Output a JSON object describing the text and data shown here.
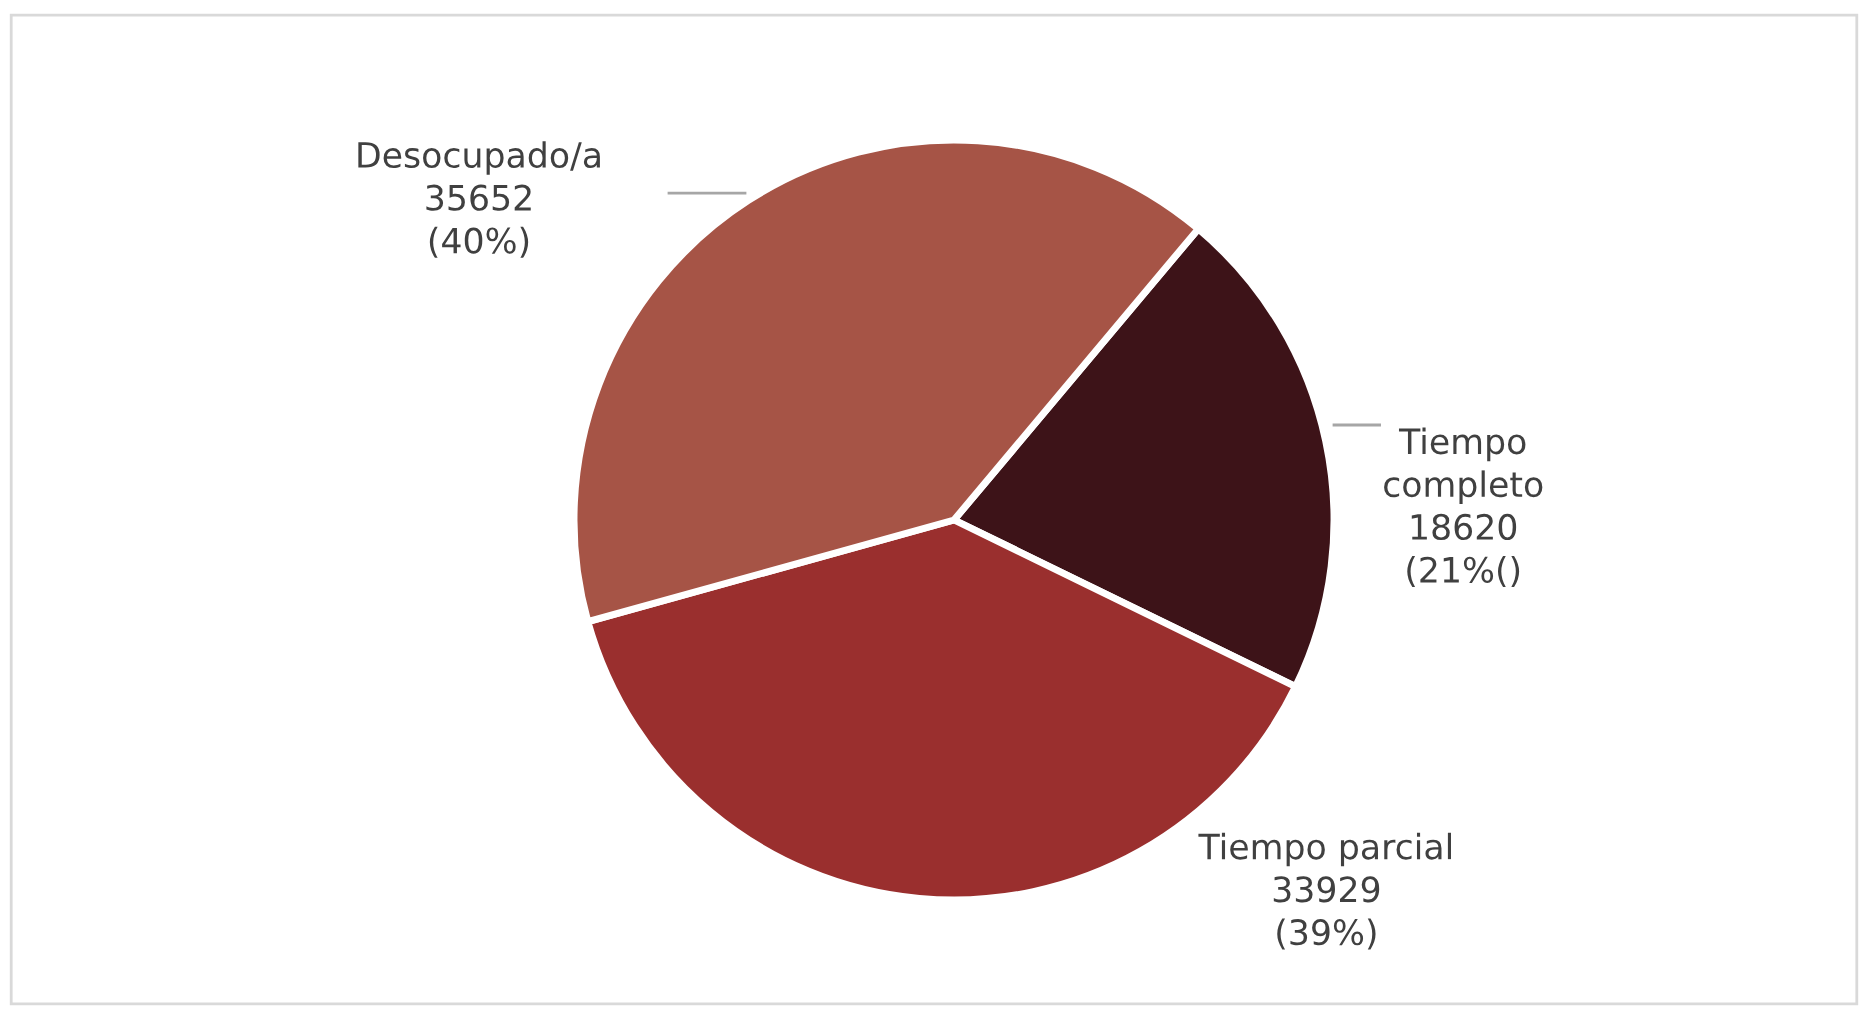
{
  "chart_data": {
    "type": "pie",
    "categories": [
      "Tiempo completo",
      "Tiempo parcial",
      "Desocupado/a"
    ],
    "values": [
      18620,
      33929,
      35652
    ],
    "value_labels": [
      "18620\n(21%()",
      "33929\n(39%)",
      "35652\n(40%)"
    ],
    "colors": [
      "#3d1318",
      "#9a2f2e",
      "#a65446"
    ],
    "legend": false
  }
}
